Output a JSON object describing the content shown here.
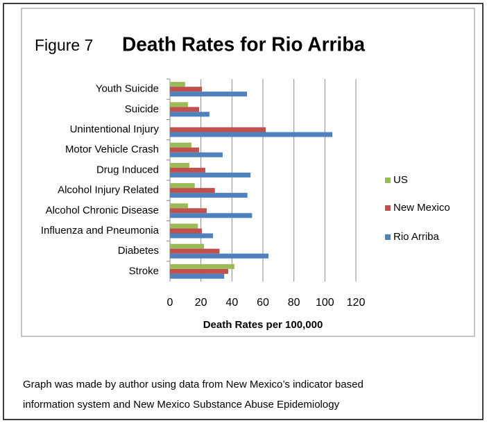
{
  "chart_data": {
    "type": "hbar",
    "figure_label": "Figure 7",
    "title": "Death Rates for Rio Arriba",
    "x_label": "Death Rates per 100,000",
    "categories": [
      "Youth Suicide",
      "Suicide",
      "Unintentional Injury",
      "Motor Vehicle Crash",
      "Drug Induced",
      "Alcohol Injury Related",
      "Alcohol Chronic Disease",
      "Influenza and Pneumonia",
      "Diabetes",
      "Stroke"
    ],
    "series": [
      {
        "name": "US",
        "color": "#9bbb59",
        "values": [
          9.8,
          11.6,
          null,
          13.9,
          12.5,
          16,
          11.6,
          18,
          22,
          41.6
        ]
      },
      {
        "name": "New Mexico",
        "color": "#c0504d",
        "values": [
          20.6,
          18.8,
          61.8,
          18.8,
          22.8,
          29,
          23.7,
          20.6,
          32,
          37.6
        ]
      },
      {
        "name": "Rio Arriba",
        "color": "#4f81bd",
        "values": [
          49.7,
          25.5,
          104.8,
          34,
          52,
          50,
          53,
          27.8,
          63.6,
          35
        ]
      }
    ],
    "xlim": [
      0,
      120
    ],
    "xticks": [
      0,
      20,
      40,
      60,
      80,
      100,
      120
    ],
    "grid": true,
    "legend": "right"
  },
  "caption": [
    "Graph was made by author using data from New Mexico’s indicator based",
    "information system and New Mexico Substance Abuse Epidemiology"
  ]
}
